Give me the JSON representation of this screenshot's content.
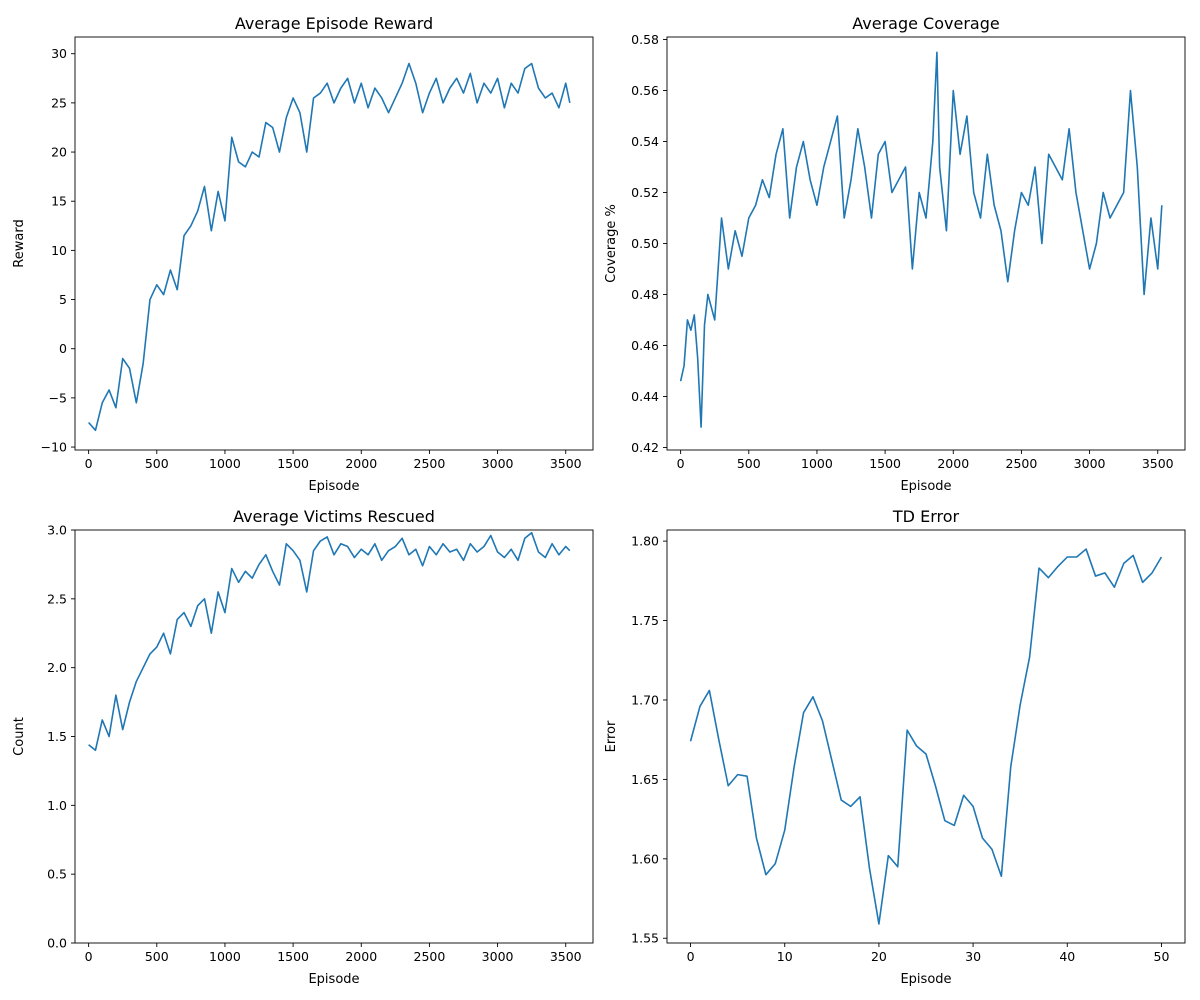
{
  "chart_data": [
    {
      "type": "line",
      "title": "Average Episode Reward",
      "xlabel": "Episode",
      "ylabel": "Reward",
      "xlim": [
        -100,
        3700
      ],
      "ylim": [
        -10.3,
        31.7
      ],
      "xticks": [
        0,
        500,
        1000,
        1500,
        2000,
        2500,
        3000,
        3500
      ],
      "yticks": [
        -10,
        -5,
        0,
        5,
        10,
        15,
        20,
        25,
        30
      ],
      "color": "#1f77b4",
      "x": [
        0,
        50,
        100,
        150,
        200,
        250,
        300,
        350,
        400,
        450,
        500,
        550,
        600,
        650,
        700,
        750,
        800,
        850,
        900,
        950,
        1000,
        1050,
        1100,
        1150,
        1200,
        1250,
        1300,
        1350,
        1400,
        1450,
        1500,
        1550,
        1600,
        1650,
        1700,
        1750,
        1800,
        1850,
        1900,
        1950,
        2000,
        2050,
        2100,
        2150,
        2200,
        2250,
        2300,
        2350,
        2400,
        2450,
        2500,
        2550,
        2600,
        2650,
        2700,
        2750,
        2800,
        2850,
        2900,
        2950,
        3000,
        3050,
        3100,
        3150,
        3200,
        3250,
        3300,
        3350,
        3400,
        3450,
        3500,
        3530
      ],
      "y": [
        -7.5,
        -8.3,
        -5.5,
        -4.2,
        -6.0,
        -1.0,
        -2.0,
        -5.5,
        -1.5,
        5.0,
        6.5,
        5.5,
        8.0,
        6.0,
        11.5,
        12.5,
        14.0,
        16.5,
        12.0,
        16.0,
        13.0,
        21.5,
        19.0,
        18.5,
        20.0,
        19.5,
        23.0,
        22.5,
        20.0,
        23.5,
        25.5,
        24.0,
        20.0,
        25.5,
        26.0,
        27.0,
        25.0,
        26.5,
        27.5,
        25.0,
        27.0,
        24.5,
        26.5,
        25.5,
        24.0,
        25.5,
        27.0,
        29.0,
        27.0,
        24.0,
        26.0,
        27.5,
        25.0,
        26.5,
        27.5,
        26.0,
        28.0,
        25.0,
        27.0,
        26.0,
        27.5,
        24.5,
        27.0,
        26.0,
        28.5,
        29.0,
        26.5,
        25.5,
        26.0,
        24.5,
        27.0,
        25.0
      ]
    },
    {
      "type": "line",
      "title": "Average Coverage",
      "xlabel": "Episode",
      "ylabel": "Coverage %",
      "xlim": [
        -100,
        3700
      ],
      "ylim": [
        0.419,
        0.581
      ],
      "xticks": [
        0,
        500,
        1000,
        1500,
        2000,
        2500,
        3000,
        3500
      ],
      "yticks": [
        0.42,
        0.44,
        0.46,
        0.48,
        0.5,
        0.52,
        0.54,
        0.56,
        0.58
      ],
      "ytick_labels": [
        "0.42",
        "0.44",
        "0.46",
        "0.48",
        "0.50",
        "0.52",
        "0.54",
        "0.56",
        "0.58"
      ],
      "color": "#1f77b4",
      "x": [
        0,
        25,
        50,
        75,
        100,
        125,
        150,
        175,
        200,
        250,
        300,
        350,
        400,
        450,
        500,
        550,
        600,
        650,
        700,
        750,
        800,
        850,
        900,
        950,
        1000,
        1050,
        1100,
        1150,
        1200,
        1250,
        1300,
        1350,
        1400,
        1450,
        1500,
        1550,
        1600,
        1650,
        1700,
        1750,
        1800,
        1850,
        1880,
        1900,
        1950,
        2000,
        2050,
        2100,
        2150,
        2200,
        2250,
        2300,
        2350,
        2400,
        2450,
        2500,
        2550,
        2600,
        2650,
        2700,
        2750,
        2800,
        2850,
        2900,
        2950,
        3000,
        3050,
        3100,
        3150,
        3200,
        3250,
        3300,
        3350,
        3400,
        3450,
        3500,
        3530
      ],
      "y": [
        0.446,
        0.452,
        0.47,
        0.466,
        0.472,
        0.455,
        0.428,
        0.468,
        0.48,
        0.47,
        0.51,
        0.49,
        0.505,
        0.495,
        0.51,
        0.515,
        0.525,
        0.518,
        0.535,
        0.545,
        0.51,
        0.53,
        0.54,
        0.525,
        0.515,
        0.53,
        0.54,
        0.55,
        0.51,
        0.525,
        0.545,
        0.53,
        0.51,
        0.535,
        0.54,
        0.52,
        0.525,
        0.53,
        0.49,
        0.52,
        0.51,
        0.54,
        0.575,
        0.53,
        0.505,
        0.56,
        0.535,
        0.55,
        0.52,
        0.51,
        0.535,
        0.515,
        0.505,
        0.485,
        0.505,
        0.52,
        0.515,
        0.53,
        0.5,
        0.535,
        0.53,
        0.525,
        0.545,
        0.52,
        0.505,
        0.49,
        0.5,
        0.52,
        0.51,
        0.515,
        0.52,
        0.56,
        0.53,
        0.48,
        0.51,
        0.49,
        0.515
      ]
    },
    {
      "type": "line",
      "title": "Average Victims Rescued",
      "xlabel": "Episode",
      "ylabel": "Count",
      "xlim": [
        -100,
        3700
      ],
      "ylim": [
        0,
        3.0
      ],
      "xticks": [
        0,
        500,
        1000,
        1500,
        2000,
        2500,
        3000,
        3500
      ],
      "yticks": [
        0,
        0.5,
        1.0,
        1.5,
        2.0,
        2.5,
        3.0
      ],
      "ytick_labels": [
        "0.0",
        "0.5",
        "1.0",
        "1.5",
        "2.0",
        "2.5",
        "3.0"
      ],
      "color": "#1f77b4",
      "x": [
        0,
        50,
        100,
        150,
        200,
        250,
        300,
        350,
        400,
        450,
        500,
        550,
        600,
        650,
        700,
        750,
        800,
        850,
        900,
        950,
        1000,
        1050,
        1100,
        1150,
        1200,
        1250,
        1300,
        1350,
        1400,
        1450,
        1500,
        1550,
        1600,
        1650,
        1700,
        1750,
        1800,
        1850,
        1900,
        1950,
        2000,
        2050,
        2100,
        2150,
        2200,
        2250,
        2300,
        2350,
        2400,
        2450,
        2500,
        2550,
        2600,
        2650,
        2700,
        2750,
        2800,
        2850,
        2900,
        2950,
        3000,
        3050,
        3100,
        3150,
        3200,
        3250,
        3300,
        3350,
        3400,
        3450,
        3500,
        3530
      ],
      "y": [
        1.44,
        1.4,
        1.62,
        1.5,
        1.8,
        1.55,
        1.75,
        1.9,
        2.0,
        2.1,
        2.15,
        2.25,
        2.1,
        2.35,
        2.4,
        2.3,
        2.45,
        2.5,
        2.25,
        2.55,
        2.4,
        2.72,
        2.62,
        2.7,
        2.65,
        2.75,
        2.82,
        2.7,
        2.6,
        2.9,
        2.85,
        2.78,
        2.55,
        2.85,
        2.92,
        2.95,
        2.82,
        2.9,
        2.88,
        2.8,
        2.86,
        2.82,
        2.9,
        2.78,
        2.85,
        2.88,
        2.94,
        2.82,
        2.86,
        2.74,
        2.88,
        2.82,
        2.9,
        2.84,
        2.86,
        2.78,
        2.9,
        2.84,
        2.88,
        2.96,
        2.84,
        2.8,
        2.86,
        2.78,
        2.94,
        2.98,
        2.84,
        2.8,
        2.9,
        2.82,
        2.88,
        2.85
      ]
    },
    {
      "type": "line",
      "title": "TD Error",
      "xlabel": "Episode",
      "ylabel": "Error",
      "xlim": [
        -2.5,
        52.5
      ],
      "ylim": [
        1.547,
        1.807
      ],
      "xticks": [
        0,
        10,
        20,
        30,
        40,
        50
      ],
      "yticks": [
        1.55,
        1.6,
        1.65,
        1.7,
        1.75,
        1.8
      ],
      "ytick_labels": [
        "1.55",
        "1.60",
        "1.65",
        "1.70",
        "1.75",
        "1.80"
      ],
      "color": "#1f77b4",
      "x": [
        0,
        1,
        2,
        3,
        4,
        5,
        6,
        7,
        8,
        9,
        10,
        11,
        12,
        13,
        14,
        15,
        16,
        17,
        18,
        19,
        20,
        21,
        22,
        23,
        24,
        25,
        26,
        27,
        28,
        29,
        30,
        31,
        32,
        33,
        34,
        35,
        36,
        37,
        38,
        39,
        40,
        41,
        42,
        43,
        44,
        45,
        46,
        47,
        48,
        49,
        50
      ],
      "y": [
        1.674,
        1.696,
        1.706,
        1.675,
        1.646,
        1.653,
        1.652,
        1.613,
        1.59,
        1.597,
        1.618,
        1.658,
        1.692,
        1.702,
        1.687,
        1.662,
        1.637,
        1.633,
        1.639,
        1.594,
        1.559,
        1.602,
        1.595,
        1.681,
        1.671,
        1.666,
        1.646,
        1.624,
        1.621,
        1.64,
        1.633,
        1.613,
        1.606,
        1.589,
        1.658,
        1.697,
        1.727,
        1.783,
        1.777,
        1.784,
        1.79,
        1.79,
        1.795,
        1.778,
        1.78,
        1.771,
        1.786,
        1.791,
        1.774,
        1.78,
        1.79
      ]
    }
  ]
}
